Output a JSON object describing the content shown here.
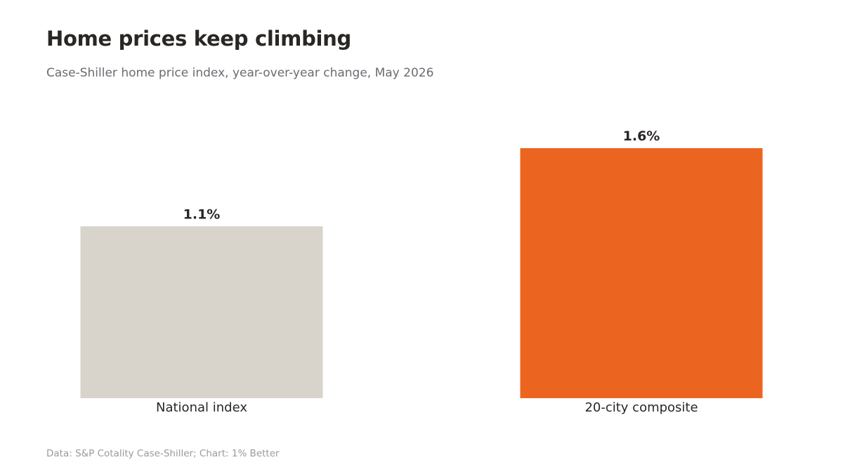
{
  "title": "Home prices keep climbing",
  "subtitle": "Case-Shiller home price index, year-over-year change, May 2026",
  "source": "Data: S&P Cotality Case-Shiller; Chart: 1% Better",
  "chart_data": {
    "type": "bar",
    "categories": [
      "National index",
      "20-city composite"
    ],
    "values": [
      1.1,
      1.6
    ],
    "value_labels": [
      "1.1%",
      "1.6%"
    ],
    "unit": "%",
    "colors": [
      "#d9d4cb",
      "#ec6520"
    ],
    "ylim": [
      0,
      1.6
    ],
    "grid": false,
    "legend": "none"
  }
}
